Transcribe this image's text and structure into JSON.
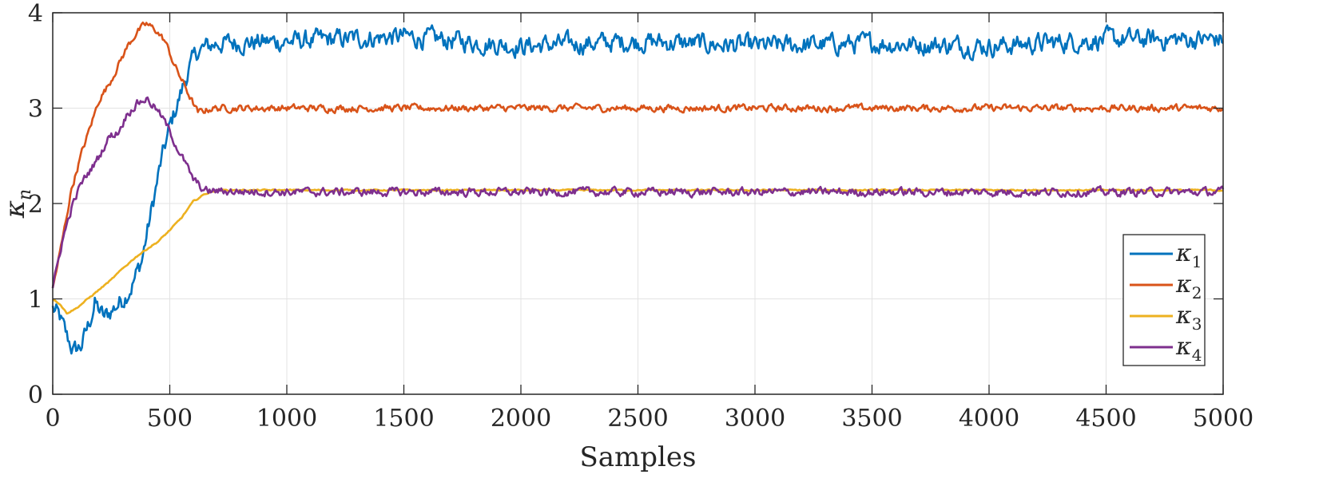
{
  "chart_data": {
    "type": "line",
    "xlabel": "Samples",
    "ylabel": "κ",
    "ylabel_sub": "n",
    "xlim": [
      0,
      5000
    ],
    "ylim": [
      0,
      4
    ],
    "xticks": [
      0,
      500,
      1000,
      1500,
      2000,
      2500,
      3000,
      3500,
      4000,
      4500,
      5000
    ],
    "xtick_labels": [
      "0",
      "500",
      "1000",
      "1500",
      "2000",
      "2500",
      "3000",
      "3500",
      "4000",
      "4500",
      "5000"
    ],
    "yticks": [
      0,
      1,
      2,
      3,
      4
    ],
    "ytick_labels": [
      "0",
      "1",
      "2",
      "3",
      "4"
    ],
    "grid": true,
    "legend_position": "right",
    "series": [
      {
        "name": "κ1",
        "symbol": "κ",
        "sub": "1",
        "color": "#0072BD",
        "noise": 0.085,
        "x": [
          0,
          30,
          60,
          90,
          120,
          150,
          180,
          220,
          260,
          300,
          340,
          380,
          420,
          460,
          500,
          540,
          580,
          620,
          700,
          1000,
          1500,
          2000,
          2500,
          3000,
          3500,
          4000,
          4500,
          5000
        ],
        "y": [
          0.9,
          0.8,
          0.6,
          0.45,
          0.5,
          0.7,
          0.95,
          0.8,
          0.9,
          1.0,
          1.15,
          1.4,
          1.9,
          2.4,
          2.8,
          3.1,
          3.4,
          3.6,
          3.68,
          3.7,
          3.75,
          3.65,
          3.7,
          3.65,
          3.68,
          3.65,
          3.72,
          3.72
        ]
      },
      {
        "name": "κ2",
        "symbol": "κ",
        "sub": "2",
        "color": "#D95319",
        "noise": 0.03,
        "x": [
          0,
          40,
          80,
          120,
          160,
          200,
          240,
          280,
          320,
          360,
          400,
          440,
          480,
          520,
          560,
          600,
          620,
          680,
          1000,
          2000,
          3000,
          4000,
          5000
        ],
        "y": [
          1.1,
          1.6,
          2.15,
          2.5,
          2.8,
          3.1,
          3.25,
          3.45,
          3.65,
          3.8,
          3.88,
          3.82,
          3.7,
          3.45,
          3.25,
          3.05,
          2.95,
          3.0,
          3.0,
          3.0,
          3.0,
          3.0,
          3.0
        ]
      },
      {
        "name": "κ3",
        "symbol": "κ",
        "sub": "3",
        "color": "#EDB120",
        "noise": 0.006,
        "x": [
          0,
          30,
          60,
          100,
          150,
          200,
          250,
          300,
          350,
          400,
          450,
          500,
          550,
          600,
          650,
          700,
          1000,
          2000,
          3000,
          4000,
          5000
        ],
        "y": [
          1.0,
          0.95,
          0.85,
          0.9,
          1.0,
          1.1,
          1.2,
          1.32,
          1.43,
          1.52,
          1.6,
          1.72,
          1.85,
          2.02,
          2.1,
          2.14,
          2.14,
          2.14,
          2.14,
          2.14,
          2.14
        ]
      },
      {
        "name": "κ4",
        "symbol": "κ",
        "sub": "4",
        "color": "#7E2F8E",
        "noise": 0.035,
        "x": [
          0,
          40,
          80,
          120,
          160,
          200,
          240,
          280,
          320,
          360,
          400,
          440,
          480,
          520,
          560,
          600,
          650,
          700,
          1000,
          2000,
          3000,
          4000,
          5000
        ],
        "y": [
          1.1,
          1.6,
          1.95,
          2.2,
          2.35,
          2.5,
          2.7,
          2.75,
          2.95,
          3.05,
          3.1,
          3.0,
          2.85,
          2.65,
          2.45,
          2.25,
          2.13,
          2.13,
          2.12,
          2.12,
          2.12,
          2.12,
          2.12
        ]
      }
    ]
  }
}
